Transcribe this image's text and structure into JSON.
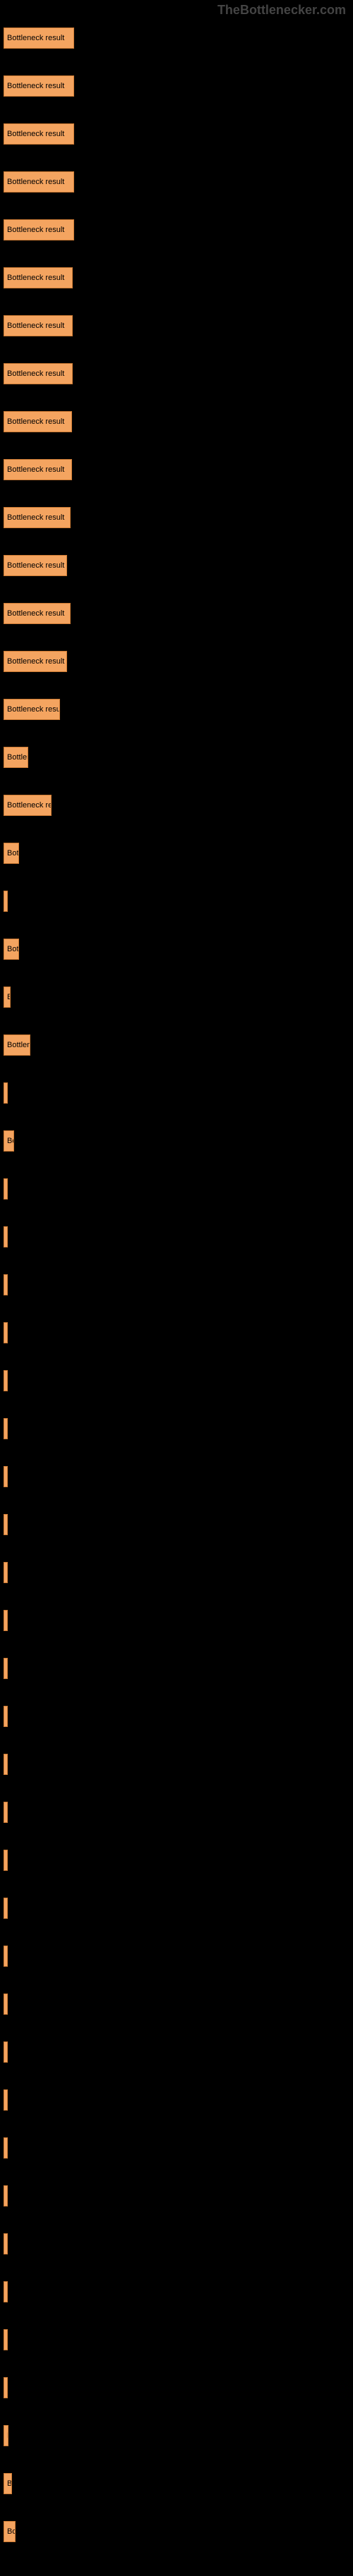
{
  "watermark": "TheBottlenecker.com",
  "chart": {
    "type": "bar",
    "bar_color": "#f4a460",
    "bar_border_color": "#cc7a33",
    "bar_label": "Bottleneck result",
    "background_color": "#000000",
    "text_color": "#000000",
    "label_color": "#888888",
    "bars": [
      {
        "width": 100
      },
      {
        "width": 100
      },
      {
        "width": 100
      },
      {
        "width": 100
      },
      {
        "width": 100
      },
      {
        "width": 98
      },
      {
        "width": 98
      },
      {
        "width": 98
      },
      {
        "width": 97
      },
      {
        "width": 97
      },
      {
        "width": 95
      },
      {
        "width": 90
      },
      {
        "width": 95
      },
      {
        "width": 90
      },
      {
        "width": 80
      },
      {
        "width": 35
      },
      {
        "width": 68
      },
      {
        "width": 22
      },
      {
        "width": 1
      },
      {
        "width": 22
      },
      {
        "width": 10
      },
      {
        "width": 38
      },
      {
        "width": 1
      },
      {
        "width": 15
      },
      {
        "width": 1
      },
      {
        "width": 1
      },
      {
        "width": 1
      },
      {
        "width": 1
      },
      {
        "width": 1
      },
      {
        "width": 1
      },
      {
        "width": 1
      },
      {
        "width": 1
      },
      {
        "width": 1
      },
      {
        "width": 1
      },
      {
        "width": 1
      },
      {
        "width": 1
      },
      {
        "width": 1
      },
      {
        "width": 1
      },
      {
        "width": 1
      },
      {
        "width": 1
      },
      {
        "width": 1
      },
      {
        "width": 1
      },
      {
        "width": 1
      },
      {
        "width": 1
      },
      {
        "width": 1
      },
      {
        "width": 1
      },
      {
        "width": 1
      },
      {
        "width": 1
      },
      {
        "width": 4
      },
      {
        "width": 1
      },
      {
        "width": 7
      },
      {
        "width": 12
      },
      {
        "width": 17
      }
    ]
  }
}
